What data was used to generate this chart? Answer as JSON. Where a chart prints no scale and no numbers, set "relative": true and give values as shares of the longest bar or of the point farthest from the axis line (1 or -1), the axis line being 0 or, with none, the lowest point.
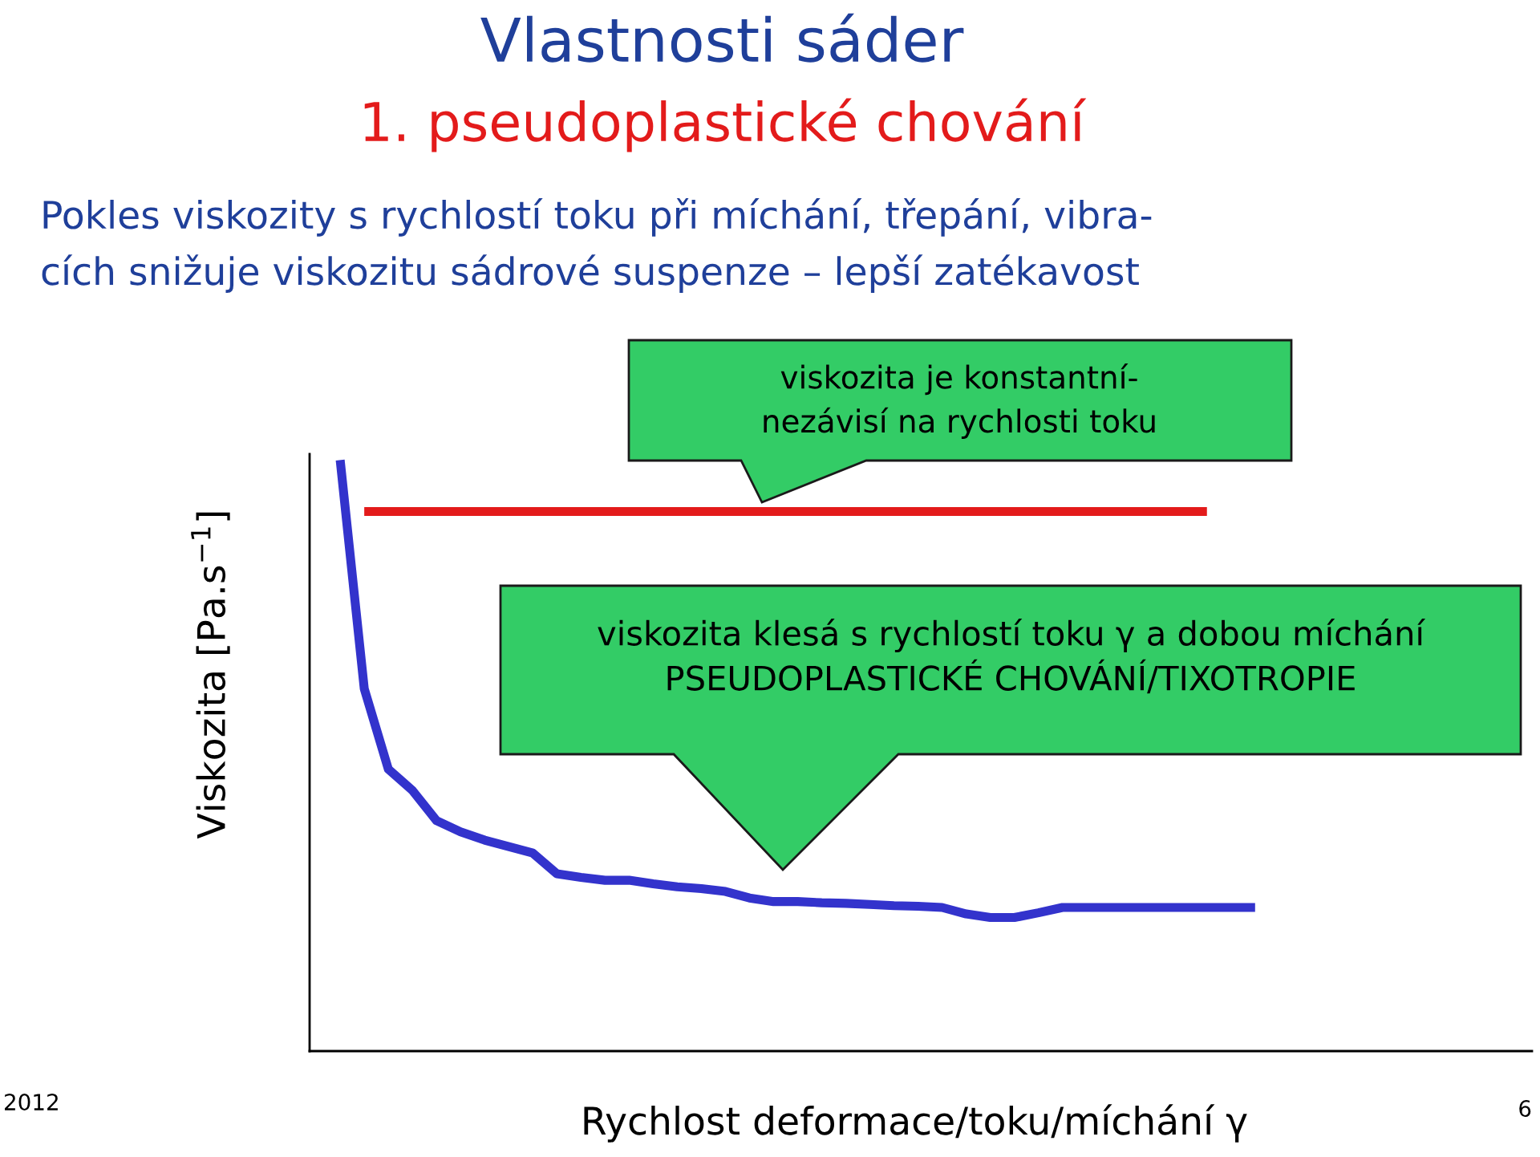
{
  "chart_data": {
    "type": "line",
    "relative": true,
    "title": "Vlastnosti sáder",
    "subtitle": "1. pseudoplastické chování",
    "xlabel": "Rychlost deformace/toku/míchání γ",
    "ylabel": "Viskozita [Pa.s$^{−1}$]",
    "categories": [
      null,
      null,
      null,
      null,
      null,
      null,
      null,
      null,
      null,
      null,
      null,
      null,
      null,
      null,
      null,
      null,
      null,
      null,
      null,
      null,
      null,
      null,
      null,
      null,
      null,
      null,
      null,
      null,
      null,
      null,
      null,
      null,
      null,
      null,
      null,
      null,
      null,
      null,
      null
    ],
    "series": [
      {
        "color": "#e31b1b",
        "values": [
          null,
          0.913,
          0.913,
          0.913,
          0.913,
          0.913,
          0.913,
          0.913,
          0.913,
          0.913,
          0.913,
          0.913,
          0.913,
          0.913,
          0.913,
          0.913,
          0.913,
          0.913,
          0.913,
          0.913,
          0.913,
          0.913,
          0.913,
          0.913,
          0.913,
          0.913,
          0.913,
          0.913,
          0.913,
          0.913,
          0.913,
          0.913,
          0.913,
          0.913,
          0.913,
          0.913,
          0.913,
          null,
          null
        ]
      },
      {
        "color": "#3333cc",
        "values": [
          1.0,
          0.613,
          0.477,
          0.441,
          0.39,
          0.371,
          0.357,
          0.346,
          0.335,
          0.3,
          0.294,
          0.289,
          0.289,
          0.283,
          0.278,
          0.275,
          0.27,
          0.259,
          0.253,
          0.253,
          0.251,
          0.25,
          0.248,
          0.246,
          0.245,
          0.243,
          0.232,
          0.226,
          0.226,
          0.234,
          0.243,
          0.243,
          0.243,
          0.243,
          0.243,
          0.243,
          0.243,
          0.243,
          0.243
        ]
      }
    ],
    "annotations": [
      "Pokles viskozity s rychlostí toku při míchání, třepání, vibra-\ncích snižuje viskozitu sádrové suspenze – lepší zatékavost",
      "viskozita je konstantní-\nnezávisí na rychlosti toku",
      "viskozita klesá s rychlostí toku γ a dobou míchání\nPSEUDOPLASTICKÉ CHOVÁNÍ/TIXOTROPIE",
      "2012",
      "6"
    ],
    "grid": false,
    "legend": false,
    "marker": "none",
    "line_style": "solid"
  }
}
